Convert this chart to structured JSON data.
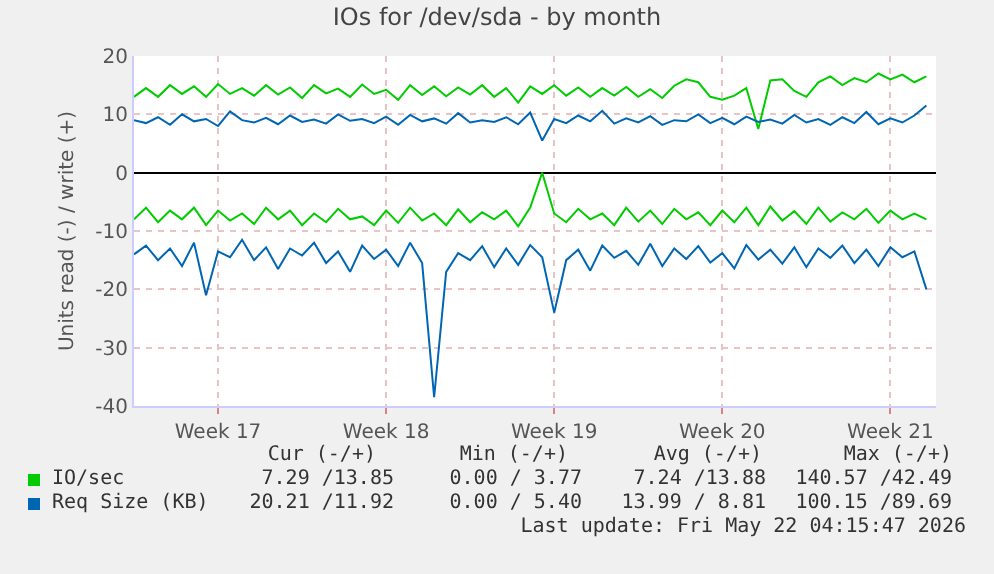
{
  "chart_data": {
    "type": "line",
    "title": "IOs for /dev/sda - by month",
    "ylabel": "Units read (-) / write (+)",
    "categories": [
      null,
      null,
      null,
      null,
      null,
      null,
      null,
      "Week 17",
      null,
      null,
      null,
      null,
      null,
      null,
      null,
      null,
      null,
      null,
      null,
      null,
      null,
      "Week 18",
      null,
      null,
      null,
      null,
      null,
      null,
      null,
      null,
      null,
      null,
      null,
      null,
      null,
      "Week 19",
      null,
      null,
      null,
      null,
      null,
      null,
      null,
      null,
      null,
      null,
      null,
      null,
      null,
      "Week 20",
      null,
      null,
      null,
      null,
      null,
      null,
      null,
      null,
      null,
      null,
      null,
      null,
      null,
      "Week 21",
      null,
      null,
      null
    ],
    "series": [
      {
        "name": "IO/sec",
        "color": "#00cc00",
        "values": [
          13,
          14.5,
          13,
          15,
          13.5,
          14.8,
          13,
          15.2,
          13.5,
          14.5,
          13.2,
          15,
          13.4,
          14.6,
          12.8,
          15,
          13.6,
          14.4,
          13,
          15.1,
          13.5,
          14.2,
          12.5,
          15,
          13.3,
          14.8,
          13.1,
          14.6,
          13.4,
          15,
          13,
          14.5,
          12,
          14.8,
          13.5,
          15,
          13.2,
          14.6,
          13,
          14.5,
          13.2,
          14.7,
          13,
          14.3,
          12.8,
          14.9,
          16,
          15.5,
          13,
          12.5,
          13.2,
          14.5,
          7.5,
          15.8,
          16,
          14,
          13,
          15.5,
          16.5,
          15,
          16.2,
          15.5,
          17,
          16,
          16.8,
          15.5,
          16.5
        ]
      },
      {
        "color": "#00cc00",
        "values": [
          -8,
          -6,
          -8.5,
          -6.5,
          -8,
          -6,
          -9,
          -6.5,
          -8.2,
          -7,
          -8.8,
          -6,
          -8,
          -6.5,
          -9,
          -7,
          -8.5,
          -6.2,
          -8,
          -7.5,
          -9,
          -6.5,
          -8.6,
          -6,
          -8.2,
          -7,
          -9,
          -6.3,
          -8.5,
          -6.8,
          -8,
          -6.5,
          -9.2,
          -6,
          0,
          -7,
          -8.5,
          -6.2,
          -8,
          -7,
          -9,
          -6,
          -8.4,
          -6.5,
          -8.8,
          -6.2,
          -8,
          -6.8,
          -9,
          -6.5,
          -8.5,
          -6,
          -9,
          -5.8,
          -8.2,
          -6.6,
          -8.8,
          -6,
          -8.4,
          -6.8,
          -8,
          -6.2,
          -8.6,
          -6.5,
          -8,
          -7,
          -8
        ]
      },
      {
        "name": "Req Size (KB)",
        "color": "#0066b3",
        "values": [
          9,
          8.5,
          9.5,
          8.2,
          10,
          8.8,
          9.2,
          8,
          10.5,
          9,
          8.6,
          9.4,
          8.3,
          9.8,
          8.7,
          9.1,
          8.4,
          10,
          8.9,
          9.2,
          8.5,
          9.6,
          8.2,
          9.9,
          8.8,
          9.3,
          8.4,
          10.2,
          8.6,
          9,
          8.7,
          9.5,
          8.3,
          10.3,
          5.5,
          9.2,
          8.5,
          9.8,
          8.8,
          10.6,
          8.4,
          9.3,
          8.6,
          9.7,
          8.2,
          9,
          8.8,
          10,
          8.5,
          9.4,
          8.3,
          9.6,
          8.7,
          9.1,
          8.4,
          9.9,
          8.6,
          9.2,
          8.2,
          9.5,
          8.5,
          10.4,
          8.3,
          9.3,
          8.6,
          9.8,
          11.5
        ]
      },
      {
        "color": "#0066b3",
        "values": [
          -14,
          -12.5,
          -15,
          -13,
          -16,
          -12,
          -21,
          -13.5,
          -14.5,
          -11.5,
          -15,
          -12.8,
          -16.5,
          -13,
          -14.2,
          -12,
          -15.5,
          -13.5,
          -17,
          -12.5,
          -14.8,
          -13.2,
          -16,
          -12,
          -15.5,
          -38.5,
          -17,
          -13.8,
          -15,
          -12.6,
          -16.2,
          -13,
          -15.8,
          -12.4,
          -14.5,
          -24,
          -15,
          -13.2,
          -16.8,
          -12.5,
          -14.6,
          -13.4,
          -15.8,
          -12.2,
          -16,
          -13,
          -14.8,
          -12.6,
          -15.4,
          -13.8,
          -16.4,
          -12.4,
          -14.9,
          -13.2,
          -15.6,
          -12.8,
          -16.2,
          -13,
          -14.6,
          -12.5,
          -15.5,
          -13.2,
          -16,
          -12.8,
          -14.5,
          -13.5,
          -20
        ]
      }
    ],
    "ylim": [
      -40,
      20
    ],
    "yticks": [
      -40,
      -30,
      -20,
      -10,
      0,
      10,
      20
    ],
    "grid": true,
    "legend": "bottom",
    "marker": "none",
    "line_style": "solid",
    "annotations": [
      "Cur (-/+)",
      "Min (-/+)",
      "Avg (-/+)",
      "Max (-/+)",
      "7.29 /13.85",
      "0.00 / 3.77",
      "7.24 /13.88",
      "140.57 /42.49",
      "20.21 /11.92",
      "0.00 / 5.40",
      "13.99 / 8.81",
      "100.15 /89.69",
      "Last update: Fri May 22 04:15:47 2026"
    ]
  }
}
